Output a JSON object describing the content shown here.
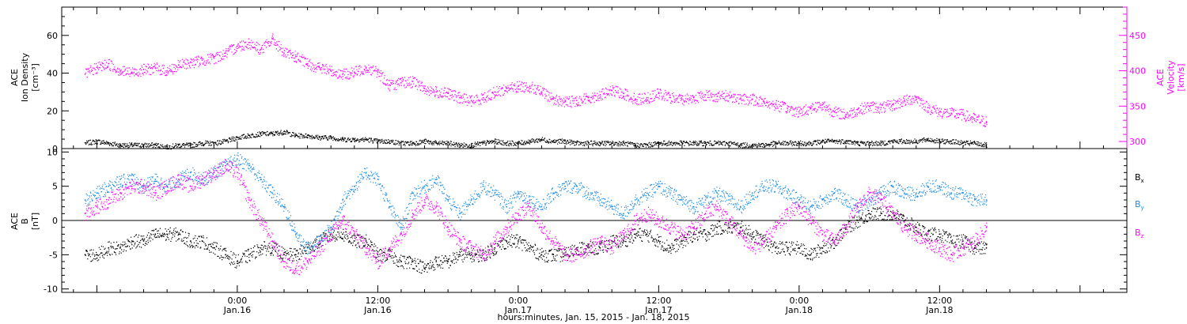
{
  "chart_data": [
    {
      "type": "scatter",
      "ylabel_left": [
        "ACE",
        "Ion Density",
        "[cm⁻³]"
      ],
      "ylabel_right": [
        "ACE",
        "Velocity",
        "[km/s]"
      ],
      "ylim_left": [
        0,
        75
      ],
      "ylim_right": [
        290,
        490
      ],
      "yticks_left": [
        "0",
        "20",
        "40",
        "60"
      ],
      "yticks_right": [
        "300",
        "350",
        "400",
        "450"
      ],
      "series": [
        {
          "axis": "left",
          "color": "#000000",
          "x": [
            -13,
            -12,
            -11,
            -10,
            -9,
            -8,
            -7,
            -6,
            -5,
            -4,
            -3,
            -2,
            -1,
            0,
            1,
            2,
            3,
            4,
            5,
            6,
            7,
            8,
            9,
            10,
            11,
            12,
            13,
            14,
            15,
            16,
            17,
            18,
            19,
            20,
            21,
            22,
            23,
            24,
            25,
            26,
            27,
            28,
            29,
            30,
            31,
            32,
            33,
            34,
            35,
            36,
            37,
            38,
            39,
            40,
            41,
            42,
            43,
            44,
            45,
            46,
            47,
            48,
            49,
            50,
            51,
            52,
            53,
            54,
            55,
            56,
            57,
            58,
            59,
            60,
            61,
            62,
            63,
            64
          ],
          "y": [
            3,
            4,
            3,
            2,
            2,
            2,
            2,
            1,
            2,
            2,
            3,
            3,
            4,
            6,
            7,
            8,
            8,
            9,
            7,
            7,
            6,
            6,
            5,
            5,
            5,
            4,
            4,
            3,
            3,
            4,
            3,
            3,
            2,
            2,
            3,
            4,
            3,
            3,
            4,
            5,
            4,
            4,
            3,
            3,
            3,
            3,
            3,
            2,
            2,
            3,
            3,
            3,
            3,
            3,
            3,
            3,
            2,
            2,
            2,
            3,
            3,
            3,
            3,
            4,
            4,
            4,
            3,
            3,
            3,
            4,
            4,
            4,
            5,
            4,
            4,
            3,
            3,
            2
          ]
        },
        {
          "axis": "right",
          "color": "#ff00ff",
          "x": [
            -13,
            -12,
            -11,
            -10,
            -9,
            -8,
            -7,
            -6,
            -5,
            -4,
            -3,
            -2,
            -1,
            0,
            1,
            2,
            3,
            4,
            5,
            6,
            7,
            8,
            9,
            10,
            11,
            12,
            13,
            14,
            15,
            16,
            17,
            18,
            19,
            20,
            21,
            22,
            23,
            24,
            25,
            26,
            27,
            28,
            29,
            30,
            31,
            32,
            33,
            34,
            35,
            36,
            37,
            38,
            39,
            40,
            41,
            42,
            43,
            44,
            45,
            46,
            47,
            48,
            49,
            50,
            51,
            52,
            53,
            54,
            55,
            56,
            57,
            58,
            59,
            60,
            61,
            62,
            63,
            64
          ],
          "y": [
            395,
            405,
            410,
            400,
            398,
            402,
            404,
            400,
            408,
            412,
            415,
            418,
            425,
            435,
            440,
            430,
            445,
            425,
            420,
            410,
            405,
            400,
            395,
            398,
            405,
            398,
            380,
            383,
            385,
            375,
            370,
            368,
            362,
            358,
            362,
            370,
            375,
            378,
            378,
            370,
            360,
            356,
            358,
            362,
            366,
            372,
            368,
            360,
            362,
            368,
            362,
            360,
            362,
            366,
            364,
            365,
            360,
            360,
            356,
            352,
            347,
            342,
            348,
            352,
            342,
            338,
            345,
            350,
            348,
            352,
            358,
            362,
            348,
            342,
            340,
            338,
            332,
            328
          ]
        }
      ]
    },
    {
      "type": "scatter",
      "ylabel_left": [
        "ACE",
        "B",
        "[nT]"
      ],
      "ylim": [
        -10.5,
        10.5
      ],
      "yticks": [
        "-10",
        "-5",
        "0",
        "5",
        "10"
      ],
      "legend": [
        "B",
        "B",
        "B"
      ],
      "legend_sub": [
        "x",
        "y",
        "z"
      ],
      "legend_colors": [
        "#000000",
        "#1e8ce6",
        "#ff00ff"
      ],
      "zero_line": true,
      "series": [
        {
          "legend_index": 0,
          "color": "#000000",
          "x": [
            -13,
            -12,
            -11,
            -10,
            -9,
            -8,
            -7,
            -6,
            -5,
            -4,
            -3,
            -2,
            -1,
            0,
            1,
            2,
            3,
            4,
            5,
            6,
            7,
            8,
            9,
            10,
            11,
            12,
            13,
            14,
            15,
            16,
            17,
            18,
            19,
            20,
            21,
            22,
            23,
            24,
            25,
            26,
            27,
            28,
            29,
            30,
            31,
            32,
            33,
            34,
            35,
            36,
            37,
            38,
            39,
            40,
            41,
            42,
            43,
            44,
            45,
            46,
            47,
            48,
            49,
            50,
            51,
            52,
            53,
            54,
            55,
            56,
            57,
            58,
            59,
            60,
            61,
            62,
            63,
            64
          ],
          "y": [
            -5,
            -5,
            -4,
            -4,
            -3,
            -3,
            -2,
            -2,
            -2,
            -3,
            -3,
            -4,
            -5,
            -6,
            -5,
            -4,
            -4,
            -5,
            -5,
            -4,
            -3,
            -2,
            -2,
            -3,
            -3,
            -5,
            -5,
            -6,
            -6,
            -7,
            -6,
            -6,
            -5,
            -5,
            -5,
            -4,
            -3,
            -3,
            -4,
            -5,
            -5,
            -5,
            -4,
            -4,
            -4,
            -3,
            -3,
            -2,
            -2,
            -3,
            -4,
            -3,
            -2,
            -2,
            -1,
            -1,
            -1,
            -2,
            -3,
            -4,
            -4,
            -4,
            -5,
            -4,
            -3,
            -1,
            0,
            1,
            1,
            1,
            0,
            -1,
            -2,
            -2,
            -3,
            -3,
            -4,
            -4
          ]
        },
        {
          "legend_index": 1,
          "color": "#1e8ce6",
          "x": [
            -13,
            -12,
            -11,
            -10,
            -9,
            -8,
            -7,
            -6,
            -5,
            -4,
            -3,
            -2,
            -1,
            0,
            1,
            2,
            3,
            4,
            5,
            6,
            7,
            8,
            9,
            10,
            11,
            12,
            13,
            14,
            15,
            16,
            17,
            18,
            19,
            20,
            21,
            22,
            23,
            24,
            25,
            26,
            27,
            28,
            29,
            30,
            31,
            32,
            33,
            34,
            35,
            36,
            37,
            38,
            39,
            40,
            41,
            42,
            43,
            44,
            45,
            46,
            47,
            48,
            49,
            50,
            51,
            52,
            53,
            54,
            55,
            56,
            57,
            58,
            59,
            60,
            61,
            62,
            63,
            64
          ],
          "y": [
            3,
            4,
            5,
            6,
            6,
            5,
            6,
            5,
            6,
            7,
            6,
            7,
            8,
            9,
            8,
            6,
            4,
            2,
            -2,
            -4,
            -3,
            -1,
            3,
            5,
            7,
            6,
            2,
            -1,
            4,
            5,
            6,
            3,
            1,
            3,
            5,
            4,
            2,
            4,
            3,
            2,
            4,
            5,
            5,
            4,
            3,
            2,
            1,
            3,
            4,
            5,
            4,
            3,
            2,
            3,
            4,
            3,
            2,
            4,
            5,
            5,
            4,
            3,
            2,
            3,
            4,
            3,
            2,
            3,
            4,
            5,
            4,
            4,
            5,
            5,
            4,
            4,
            3,
            3
          ]
        },
        {
          "legend_index": 2,
          "color": "#ff00ff",
          "x": [
            -13,
            -12,
            -11,
            -10,
            -9,
            -8,
            -7,
            -6,
            -5,
            -4,
            -3,
            -2,
            -1,
            0,
            1,
            2,
            3,
            4,
            5,
            6,
            7,
            8,
            9,
            10,
            11,
            12,
            13,
            14,
            15,
            16,
            17,
            18,
            19,
            20,
            21,
            22,
            23,
            24,
            25,
            26,
            27,
            28,
            29,
            30,
            31,
            32,
            33,
            34,
            35,
            36,
            37,
            38,
            39,
            40,
            41,
            42,
            43,
            44,
            45,
            46,
            47,
            48,
            49,
            50,
            51,
            52,
            53,
            54,
            55,
            56,
            57,
            58,
            59,
            60,
            61,
            62,
            63,
            64
          ],
          "y": [
            1,
            2,
            3,
            4,
            5,
            5,
            4,
            5,
            6,
            5,
            6,
            7,
            8,
            7,
            3,
            0,
            -3,
            -6,
            -7,
            -6,
            -4,
            -2,
            0,
            -2,
            -4,
            -6,
            -4,
            -2,
            1,
            3,
            2,
            -1,
            -3,
            -4,
            -5,
            -3,
            -1,
            1,
            2,
            -1,
            -3,
            -5,
            -5,
            -4,
            -3,
            -4,
            -2,
            0,
            1,
            0,
            -1,
            -2,
            -1,
            1,
            2,
            0,
            -2,
            -4,
            -3,
            -1,
            1,
            2,
            0,
            -2,
            -3,
            -1,
            2,
            4,
            3,
            1,
            -1,
            -2,
            -3,
            -4,
            -5,
            -4,
            -3,
            -1
          ]
        }
      ]
    }
  ],
  "xaxis": {
    "xlim": [
      -15,
      76
    ],
    "ticks": [
      {
        "x": 0,
        "time": "0:00",
        "date": "Jan.16"
      },
      {
        "x": 12,
        "time": "12:00",
        "date": "Jan.16"
      },
      {
        "x": 24,
        "time": "0:00",
        "date": "Jan.17"
      },
      {
        "x": 36,
        "time": "12:00",
        "date": "Jan.17"
      },
      {
        "x": 48,
        "time": "0:00",
        "date": "Jan.18"
      },
      {
        "x": 60,
        "time": "12:00",
        "date": "Jan.18"
      }
    ],
    "label": "hours:minutes, Jan. 15, 2015 - Jan. 18, 2015"
  },
  "colors": {
    "density": "#000000",
    "velocity": "#ff00ff",
    "bx": "#000000",
    "by": "#1e8ce6",
    "bz": "#ff00ff"
  }
}
